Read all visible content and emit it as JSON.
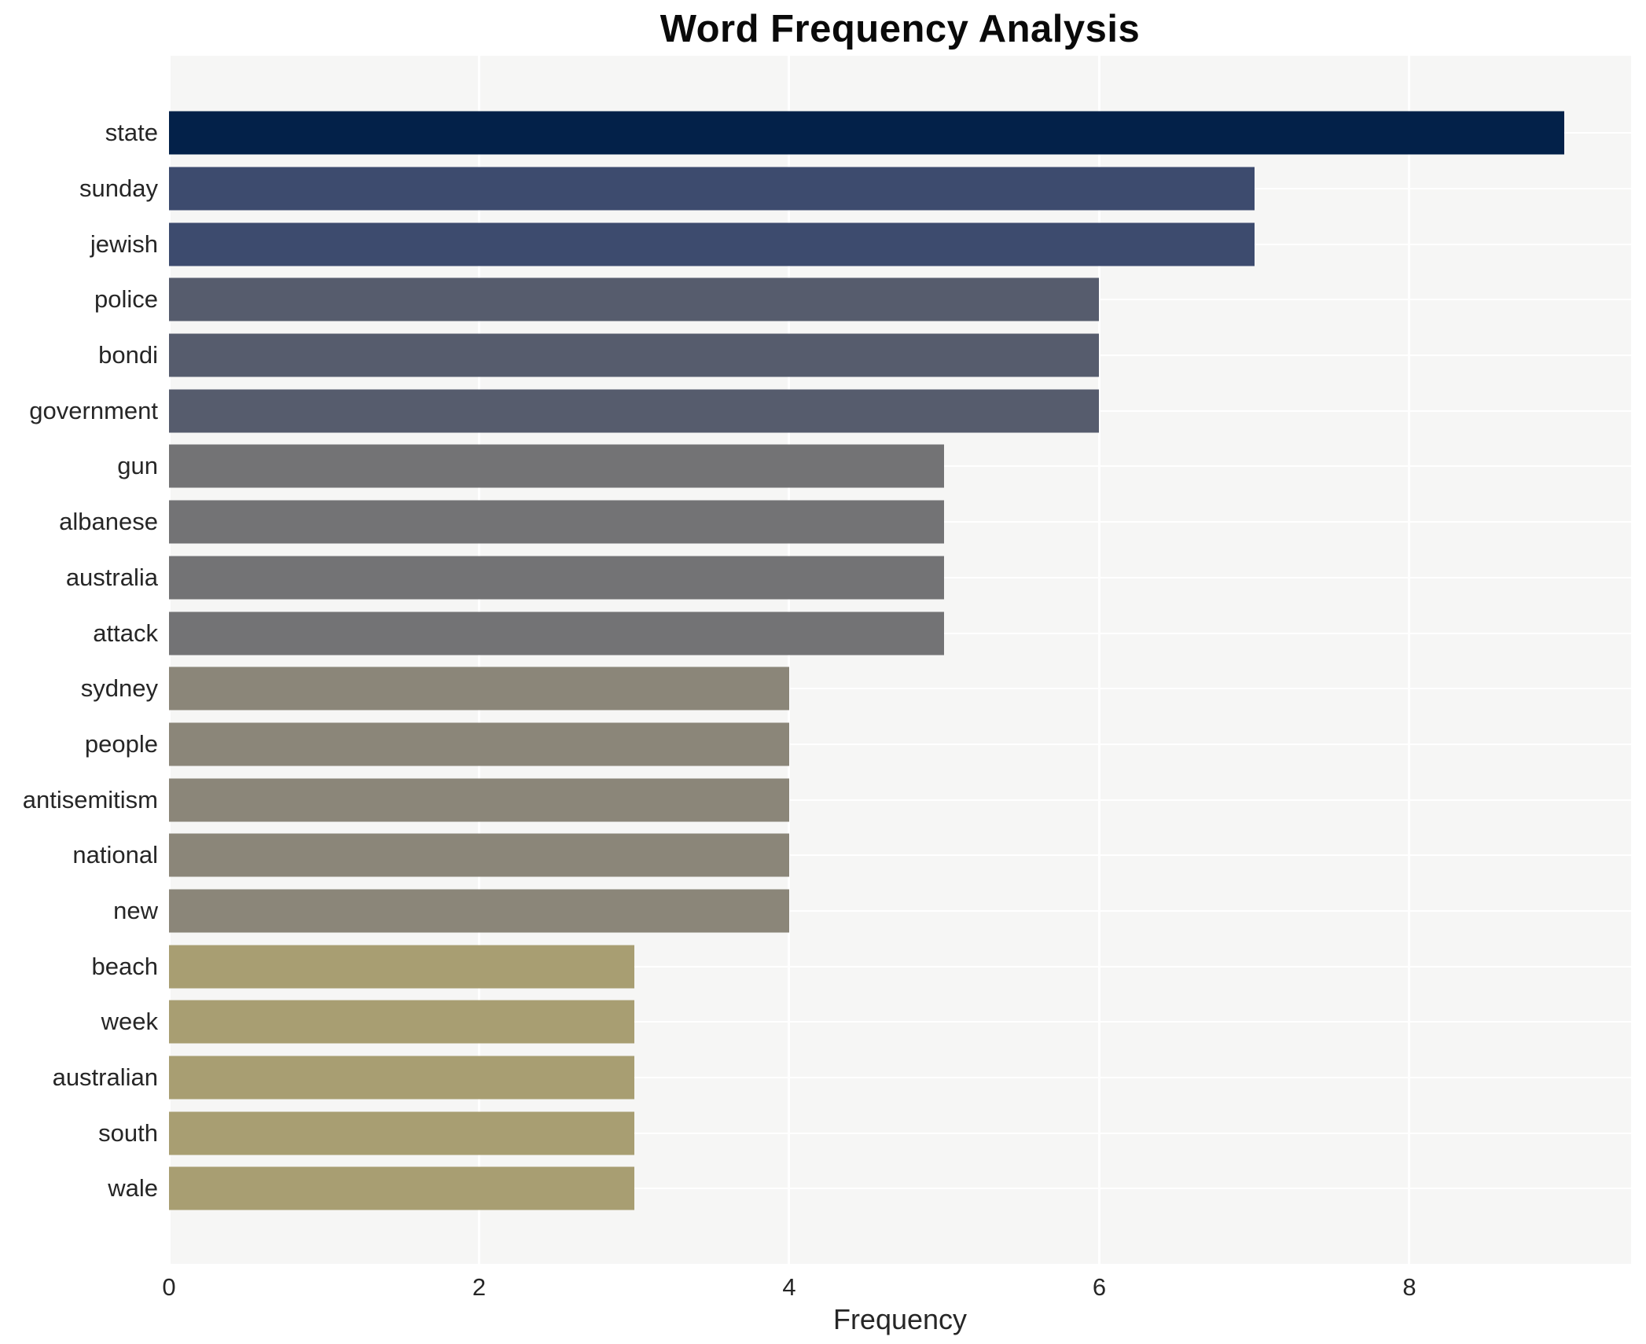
{
  "chart_data": {
    "type": "bar",
    "orientation": "horizontal",
    "title": "Word Frequency Analysis",
    "xlabel": "Frequency",
    "ylabel": "",
    "xlim": [
      0,
      9.43
    ],
    "xticks": [
      0,
      2,
      4,
      6,
      8
    ],
    "grid": true,
    "legend": "none",
    "categories": [
      "state",
      "sunday",
      "jewish",
      "police",
      "bondi",
      "government",
      "gun",
      "albanese",
      "australia",
      "attack",
      "sydney",
      "people",
      "antisemitism",
      "national",
      "new",
      "beach",
      "week",
      "australian",
      "south",
      "wale"
    ],
    "values": [
      9,
      7,
      7,
      6,
      6,
      6,
      5,
      5,
      5,
      5,
      4,
      4,
      4,
      4,
      4,
      3,
      3,
      3,
      3,
      3
    ],
    "bar_colors": [
      "#032149",
      "#3d4b6e",
      "#3d4b6e",
      "#565c6d",
      "#565c6d",
      "#565c6d",
      "#737375",
      "#737375",
      "#737375",
      "#737375",
      "#8b8679",
      "#8b8679",
      "#8b8679",
      "#8b8679",
      "#8b8679",
      "#a89e72",
      "#a89e72",
      "#a89e72",
      "#a89e72",
      "#a89e72"
    ],
    "colors": {
      "plot_bg": "#f6f6f5",
      "grid": "#ffffff",
      "tick_text": "#262626",
      "title_text": "#0a0a0a",
      "figure_bg": "#ffffff"
    }
  }
}
